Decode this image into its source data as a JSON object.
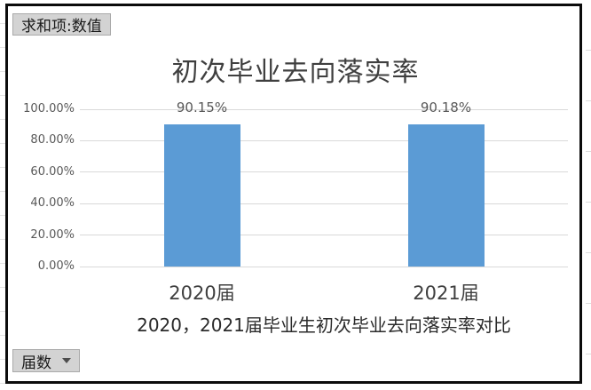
{
  "pivot_chart": {
    "value_field_button": "求和项:数值",
    "axis_field_button": "届数"
  },
  "chart_data": {
    "type": "bar",
    "title": "初次毕业去向落实率",
    "caption": "2020，2021届毕业生初次毕业去向落实率对比",
    "categories": [
      "2020届",
      "2021届"
    ],
    "series": [
      {
        "name": "求和项:数值",
        "values": [
          90.15,
          90.18
        ],
        "data_labels": [
          "90.15%",
          "90.18%"
        ]
      }
    ],
    "ylim": [
      0,
      100
    ],
    "y_ticks": [
      {
        "label": "0.00%",
        "value": 0
      },
      {
        "label": "20.00%",
        "value": 20
      },
      {
        "label": "40.00%",
        "value": 40
      },
      {
        "label": "60.00%",
        "value": 60
      },
      {
        "label": "80.00%",
        "value": 80
      },
      {
        "label": "100.00%",
        "value": 100
      }
    ],
    "grid": true,
    "legend": "none"
  },
  "colors": {
    "bar": "#5b9bd5",
    "gridline": "#d9d9d9",
    "axis_text": "#595959",
    "title_text": "#3f3f3f",
    "button_bg": "#d3d3d3",
    "button_border": "#a9a9a9",
    "frame_border": "#0b0b0b"
  }
}
